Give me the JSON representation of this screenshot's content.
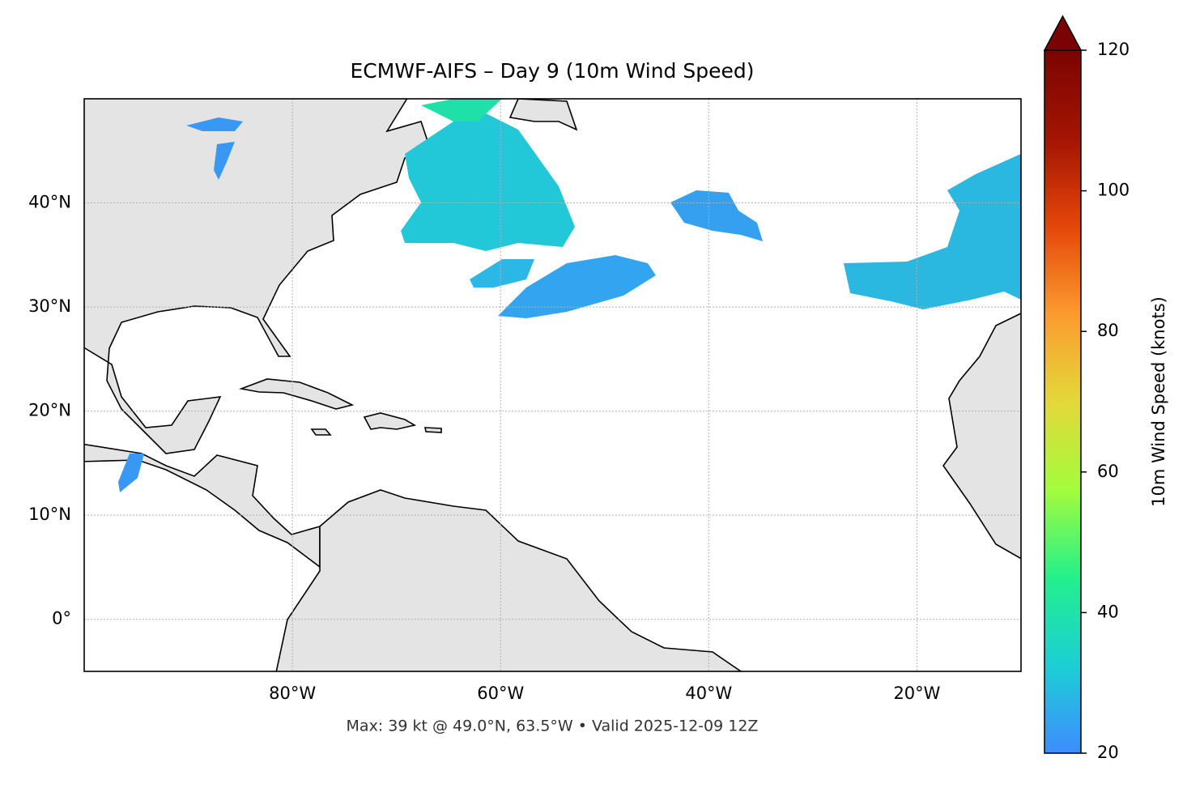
{
  "title": "ECMWF-AIFS – Day 9 (10m Wind Speed)",
  "footer": "Max: 39 kt @ 49.0°N, 63.5°W • Valid 2025-12-09 12Z",
  "map": {
    "xlim": [
      -100,
      -10
    ],
    "ylim": [
      -5,
      50
    ],
    "grid": true,
    "xticks": [
      {
        "value": -80,
        "label": "80°W"
      },
      {
        "value": -60,
        "label": "60°W"
      },
      {
        "value": -40,
        "label": "40°W"
      },
      {
        "value": -20,
        "label": "20°W"
      }
    ],
    "yticks": [
      {
        "value": 0,
        "label": "0°"
      },
      {
        "value": 10,
        "label": "10°N"
      },
      {
        "value": 20,
        "label": "20°N"
      },
      {
        "value": 30,
        "label": "30°N"
      },
      {
        "value": 40,
        "label": "40°N"
      }
    ]
  },
  "colorbar": {
    "label": "10m Wind Speed (knots)",
    "lim": [
      20,
      120
    ],
    "ticks": [
      20,
      40,
      60,
      80,
      100,
      120
    ],
    "colors": [
      "#3f8cff",
      "#1bcfd4",
      "#23f08c",
      "#a4fc3c",
      "#e3d83a",
      "#fb9b2e",
      "#e4460a",
      "#a31402",
      "#7a0403"
    ]
  }
}
